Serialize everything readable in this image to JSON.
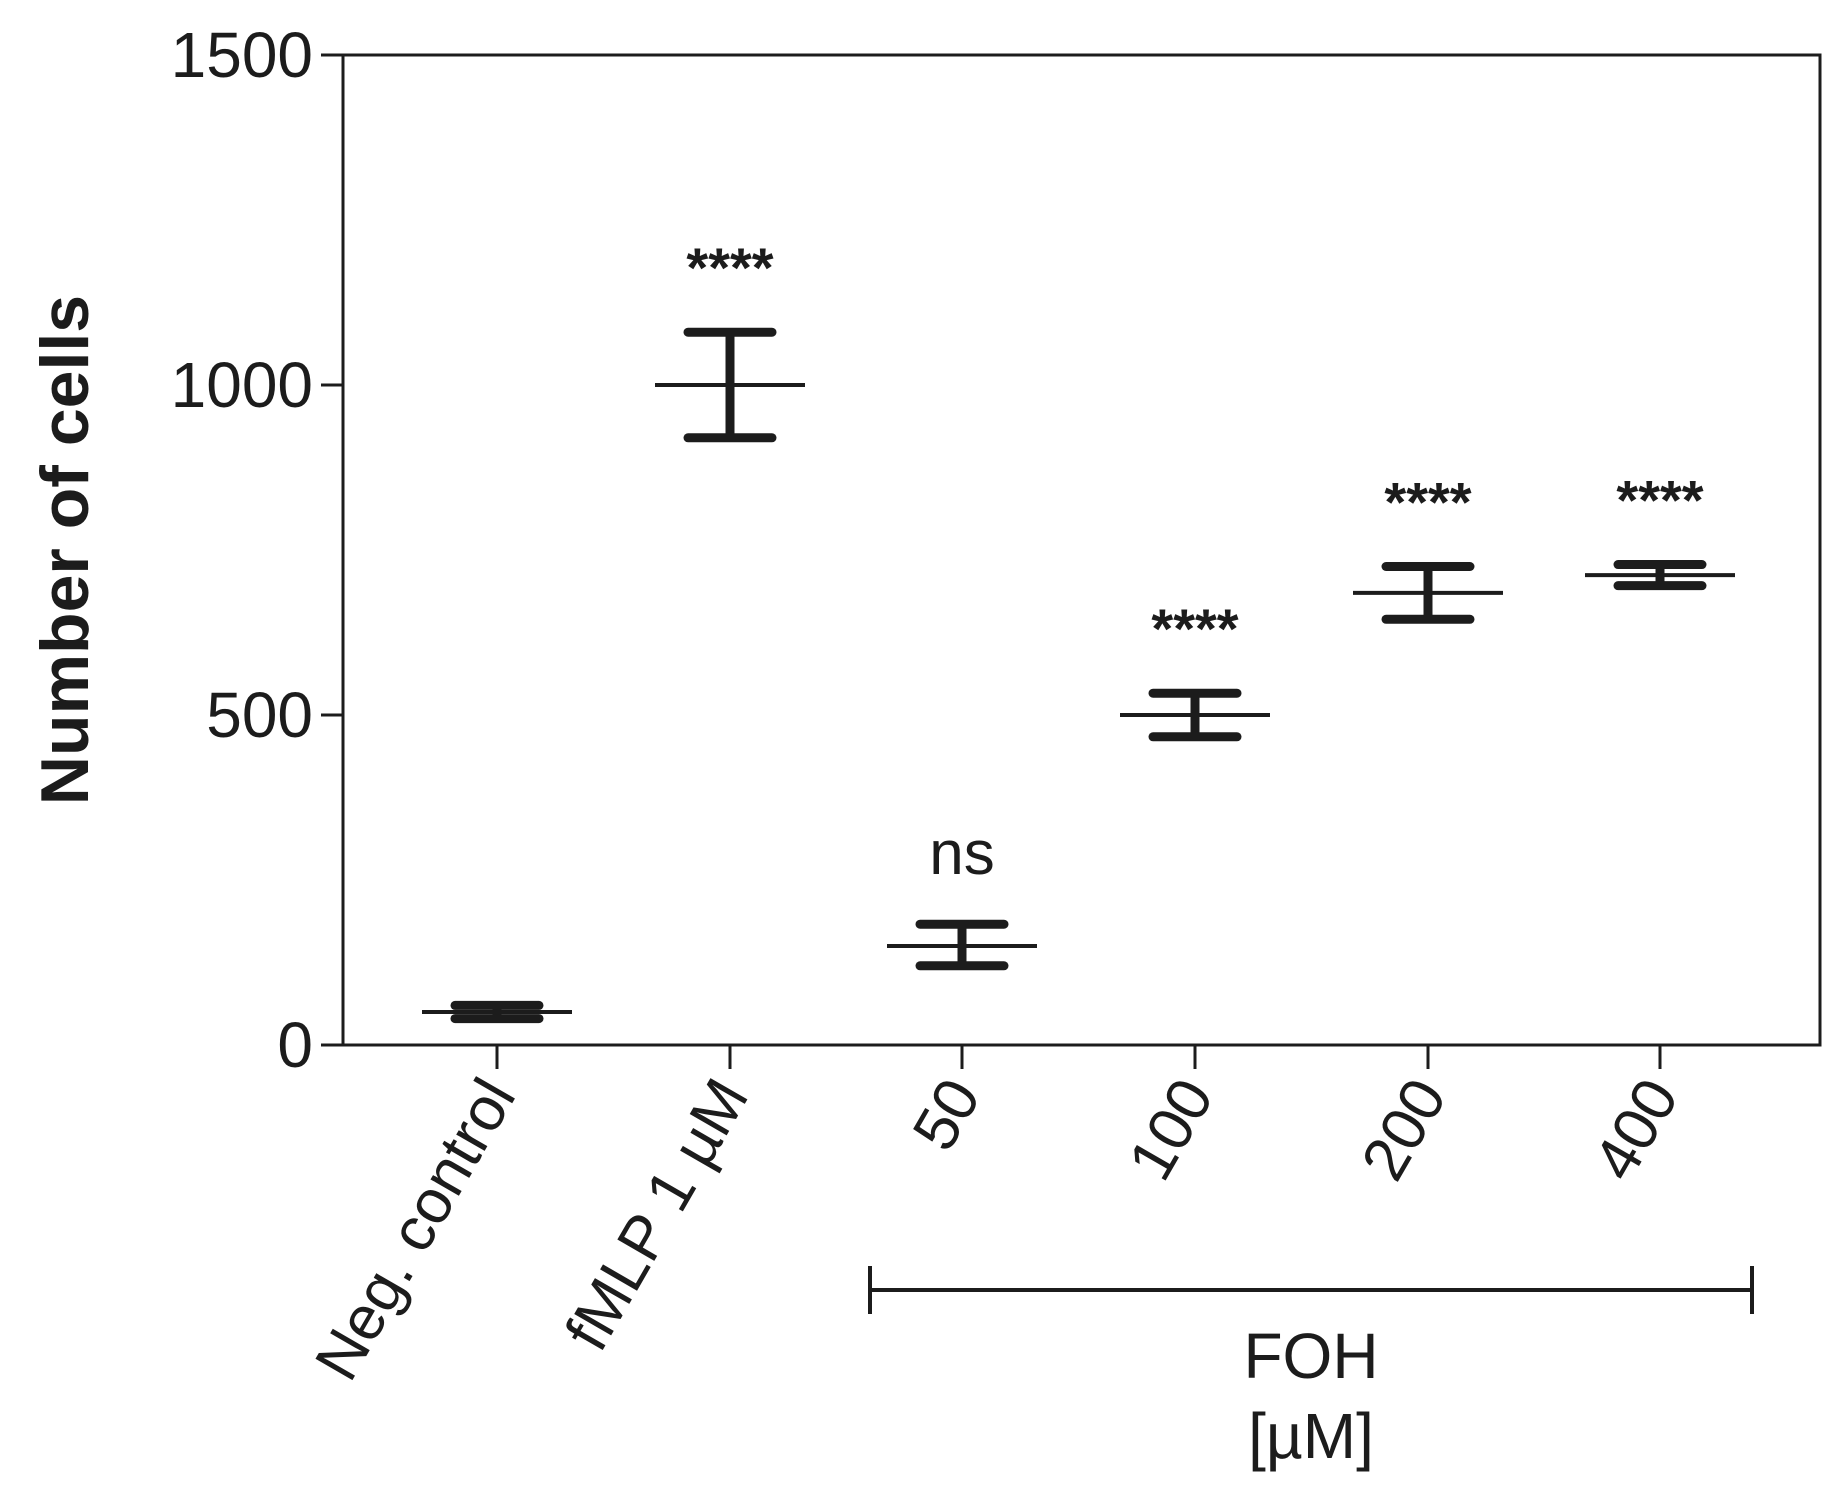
{
  "chart_data": {
    "type": "scatter",
    "ylabel": "Number of cells",
    "ylim": [
      0,
      1500
    ],
    "yticks": [
      0,
      500,
      1000,
      1500
    ],
    "categories": [
      "Neg. control",
      "fMLP 1 µM",
      "50",
      "100",
      "200",
      "400"
    ],
    "points": [
      {
        "category": "Neg. control",
        "mean": 50,
        "err_low": 40,
        "err_high": 60,
        "annotation": ""
      },
      {
        "category": "fMLP 1 µM",
        "mean": 1000,
        "err_low": 920,
        "err_high": 1080,
        "annotation": "****"
      },
      {
        "category": "50",
        "mean": 150,
        "err_low": 120,
        "err_high": 183,
        "annotation": "ns"
      },
      {
        "category": "100",
        "mean": 500,
        "err_low": 467,
        "err_high": 533,
        "annotation": "****"
      },
      {
        "category": "200",
        "mean": 685,
        "err_low": 645,
        "err_high": 725,
        "annotation": "****"
      },
      {
        "category": "400",
        "mean": 712,
        "err_low": 696,
        "err_high": 728,
        "annotation": "****"
      }
    ],
    "group_bracket": {
      "categories": [
        "50",
        "100",
        "200",
        "400"
      ],
      "label": "FOH",
      "sublabel": "[µM]"
    },
    "grid": false,
    "legend": "none",
    "color": "#1c1c1c"
  }
}
